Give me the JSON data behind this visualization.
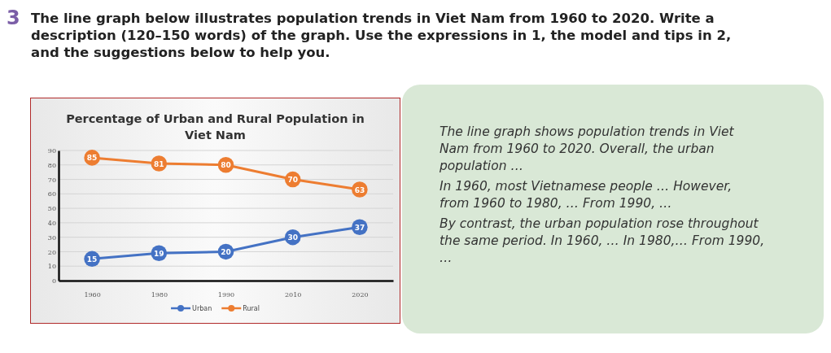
{
  "chart_data": {
    "type": "line",
    "title": "Percentage of Urban and Rural Population in Viet Nam",
    "categories": [
      "1960",
      "1980",
      "1990",
      "2010",
      "2020"
    ],
    "series": [
      {
        "name": "Urban",
        "color": "#4472c4",
        "values": [
          15,
          19,
          20,
          30,
          37
        ]
      },
      {
        "name": "Rural",
        "color": "#ed7d31",
        "values": [
          85,
          81,
          80,
          70,
          63
        ]
      }
    ],
    "ylim": [
      0,
      90
    ],
    "yticks": [
      0,
      10,
      20,
      30,
      40,
      50,
      60,
      70,
      80,
      90
    ],
    "grid": "y",
    "legend": "bottom",
    "marker": "circle",
    "data_labels": true,
    "annotations": [
      "3",
      "The line graph below illustrates population trends in Viet Nam from 1960 to 2020. Write a description (120–150 words) of the graph. Use the expressions in 1, the model and tips in 2, and the suggestions below to help you.",
      "The line graph shows population trends in Viet Nam from 1960 to 2020. Overall, the urban population …",
      "In 1960, most Vietnamese people … However, from 1960 to 1980, … From 1990, …",
      "By contrast, the urban population rose throughout the same period. In 1960, … In 1980,… From 1990, …"
    ]
  }
}
